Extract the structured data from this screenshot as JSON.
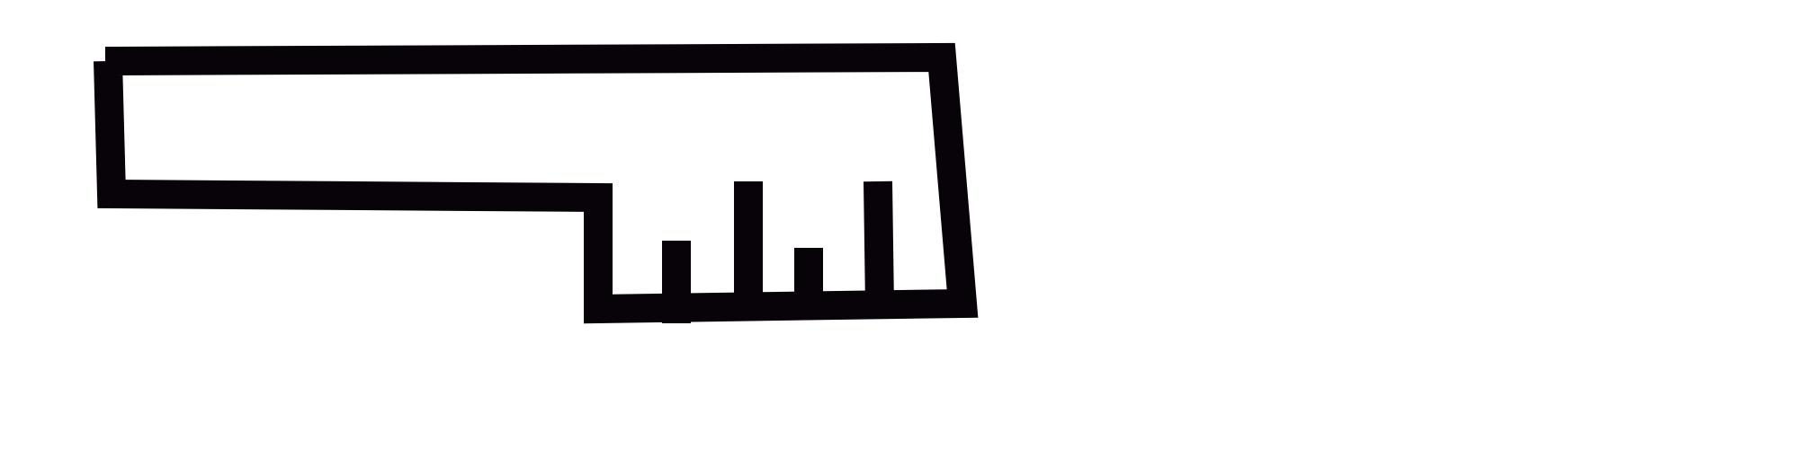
{
  "drawing": {
    "subject": "key-icon",
    "stroke_color": "#070309",
    "background_color": "#ffffff"
  }
}
